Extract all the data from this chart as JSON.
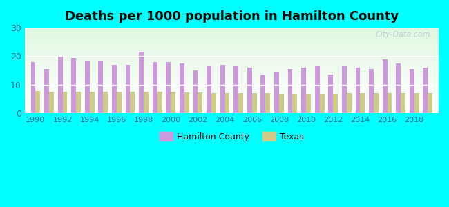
{
  "title": "Deaths per 1000 population in Hamilton County",
  "years": [
    1990,
    1991,
    1992,
    1993,
    1994,
    1995,
    1996,
    1997,
    1998,
    1999,
    2000,
    2001,
    2002,
    2003,
    2004,
    2005,
    2006,
    2007,
    2008,
    2009,
    2010,
    2011,
    2012,
    2013,
    2014,
    2015,
    2016,
    2017,
    2018,
    2019
  ],
  "hamilton": [
    18.0,
    15.5,
    20.0,
    19.5,
    18.5,
    18.5,
    17.0,
    17.0,
    21.5,
    18.0,
    18.0,
    17.5,
    15.0,
    16.5,
    17.0,
    16.5,
    16.0,
    13.5,
    14.5,
    15.5,
    16.0,
    16.5,
    13.5,
    16.5,
    16.0,
    15.5,
    19.0,
    17.5,
    15.5,
    16.0
  ],
  "texas": [
    7.8,
    7.6,
    7.6,
    7.6,
    7.6,
    7.6,
    7.5,
    7.5,
    7.5,
    7.5,
    7.5,
    7.3,
    7.2,
    7.1,
    7.1,
    7.1,
    7.0,
    7.0,
    6.9,
    6.9,
    6.9,
    6.8,
    6.9,
    7.0,
    7.0,
    7.0,
    7.1,
    7.0,
    7.1,
    7.1
  ],
  "hamilton_color": "#cc99dd",
  "texas_color": "#cccc88",
  "background_color": "#00ffff",
  "ylim": [
    0,
    30
  ],
  "yticks": [
    0,
    10,
    20,
    30
  ],
  "watermark": "City-Data.com",
  "legend_hamilton": "Hamilton County",
  "legend_texas": "Texas",
  "bar_width": 0.35
}
